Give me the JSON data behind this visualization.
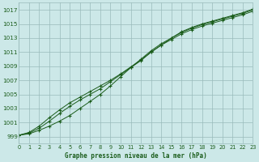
{
  "xlabel": "Graphe pression niveau de la mer (hPa)",
  "xlim": [
    0,
    23
  ],
  "ylim": [
    998,
    1018
  ],
  "yticks": [
    999,
    1001,
    1003,
    1005,
    1007,
    1009,
    1011,
    1013,
    1015,
    1017
  ],
  "xticks": [
    0,
    1,
    2,
    3,
    4,
    5,
    6,
    7,
    8,
    9,
    10,
    11,
    12,
    13,
    14,
    15,
    16,
    17,
    18,
    19,
    20,
    21,
    22,
    23
  ],
  "background_color": "#cce8e8",
  "grid_color": "#99bbbb",
  "line_color": "#1a5c1a",
  "series1_x": [
    0,
    1,
    2,
    3,
    4,
    5,
    6,
    7,
    8,
    9,
    10,
    11,
    12,
    13,
    14,
    15,
    16,
    17,
    18,
    19,
    20,
    21,
    22,
    23
  ],
  "series1_y": [
    999.2,
    999.4,
    999.9,
    1000.5,
    1001.2,
    1002.0,
    1003.0,
    1004.0,
    1005.0,
    1006.2,
    1007.5,
    1008.8,
    1010.0,
    1011.2,
    1012.2,
    1013.0,
    1013.8,
    1014.4,
    1014.9,
    1015.3,
    1015.7,
    1016.1,
    1016.5,
    1017.0
  ],
  "series2_x": [
    0,
    1,
    2,
    3,
    4,
    5,
    6,
    7,
    8,
    9,
    10,
    11,
    12,
    13,
    14,
    15,
    16,
    17,
    18,
    19,
    20,
    21,
    22,
    23
  ],
  "series2_y": [
    999.2,
    999.5,
    1000.2,
    1001.2,
    1002.3,
    1003.3,
    1004.2,
    1005.0,
    1005.8,
    1006.8,
    1007.8,
    1008.8,
    1009.8,
    1011.0,
    1012.0,
    1012.8,
    1013.6,
    1014.2,
    1014.7,
    1015.1,
    1015.5,
    1015.9,
    1016.3,
    1016.8
  ],
  "series3_x": [
    0,
    1,
    2,
    3,
    4,
    5,
    6,
    7,
    8,
    9,
    10,
    11,
    12,
    13,
    14,
    15,
    16,
    17,
    18,
    19,
    20,
    21,
    22,
    23
  ],
  "series3_y": [
    999.2,
    999.6,
    1000.5,
    1001.7,
    1002.8,
    1003.8,
    1004.6,
    1005.4,
    1006.2,
    1007.0,
    1007.9,
    1008.9,
    1009.9,
    1011.0,
    1012.0,
    1013.0,
    1013.9,
    1014.5,
    1015.0,
    1015.4,
    1015.8,
    1016.2,
    1016.6,
    1017.1
  ]
}
